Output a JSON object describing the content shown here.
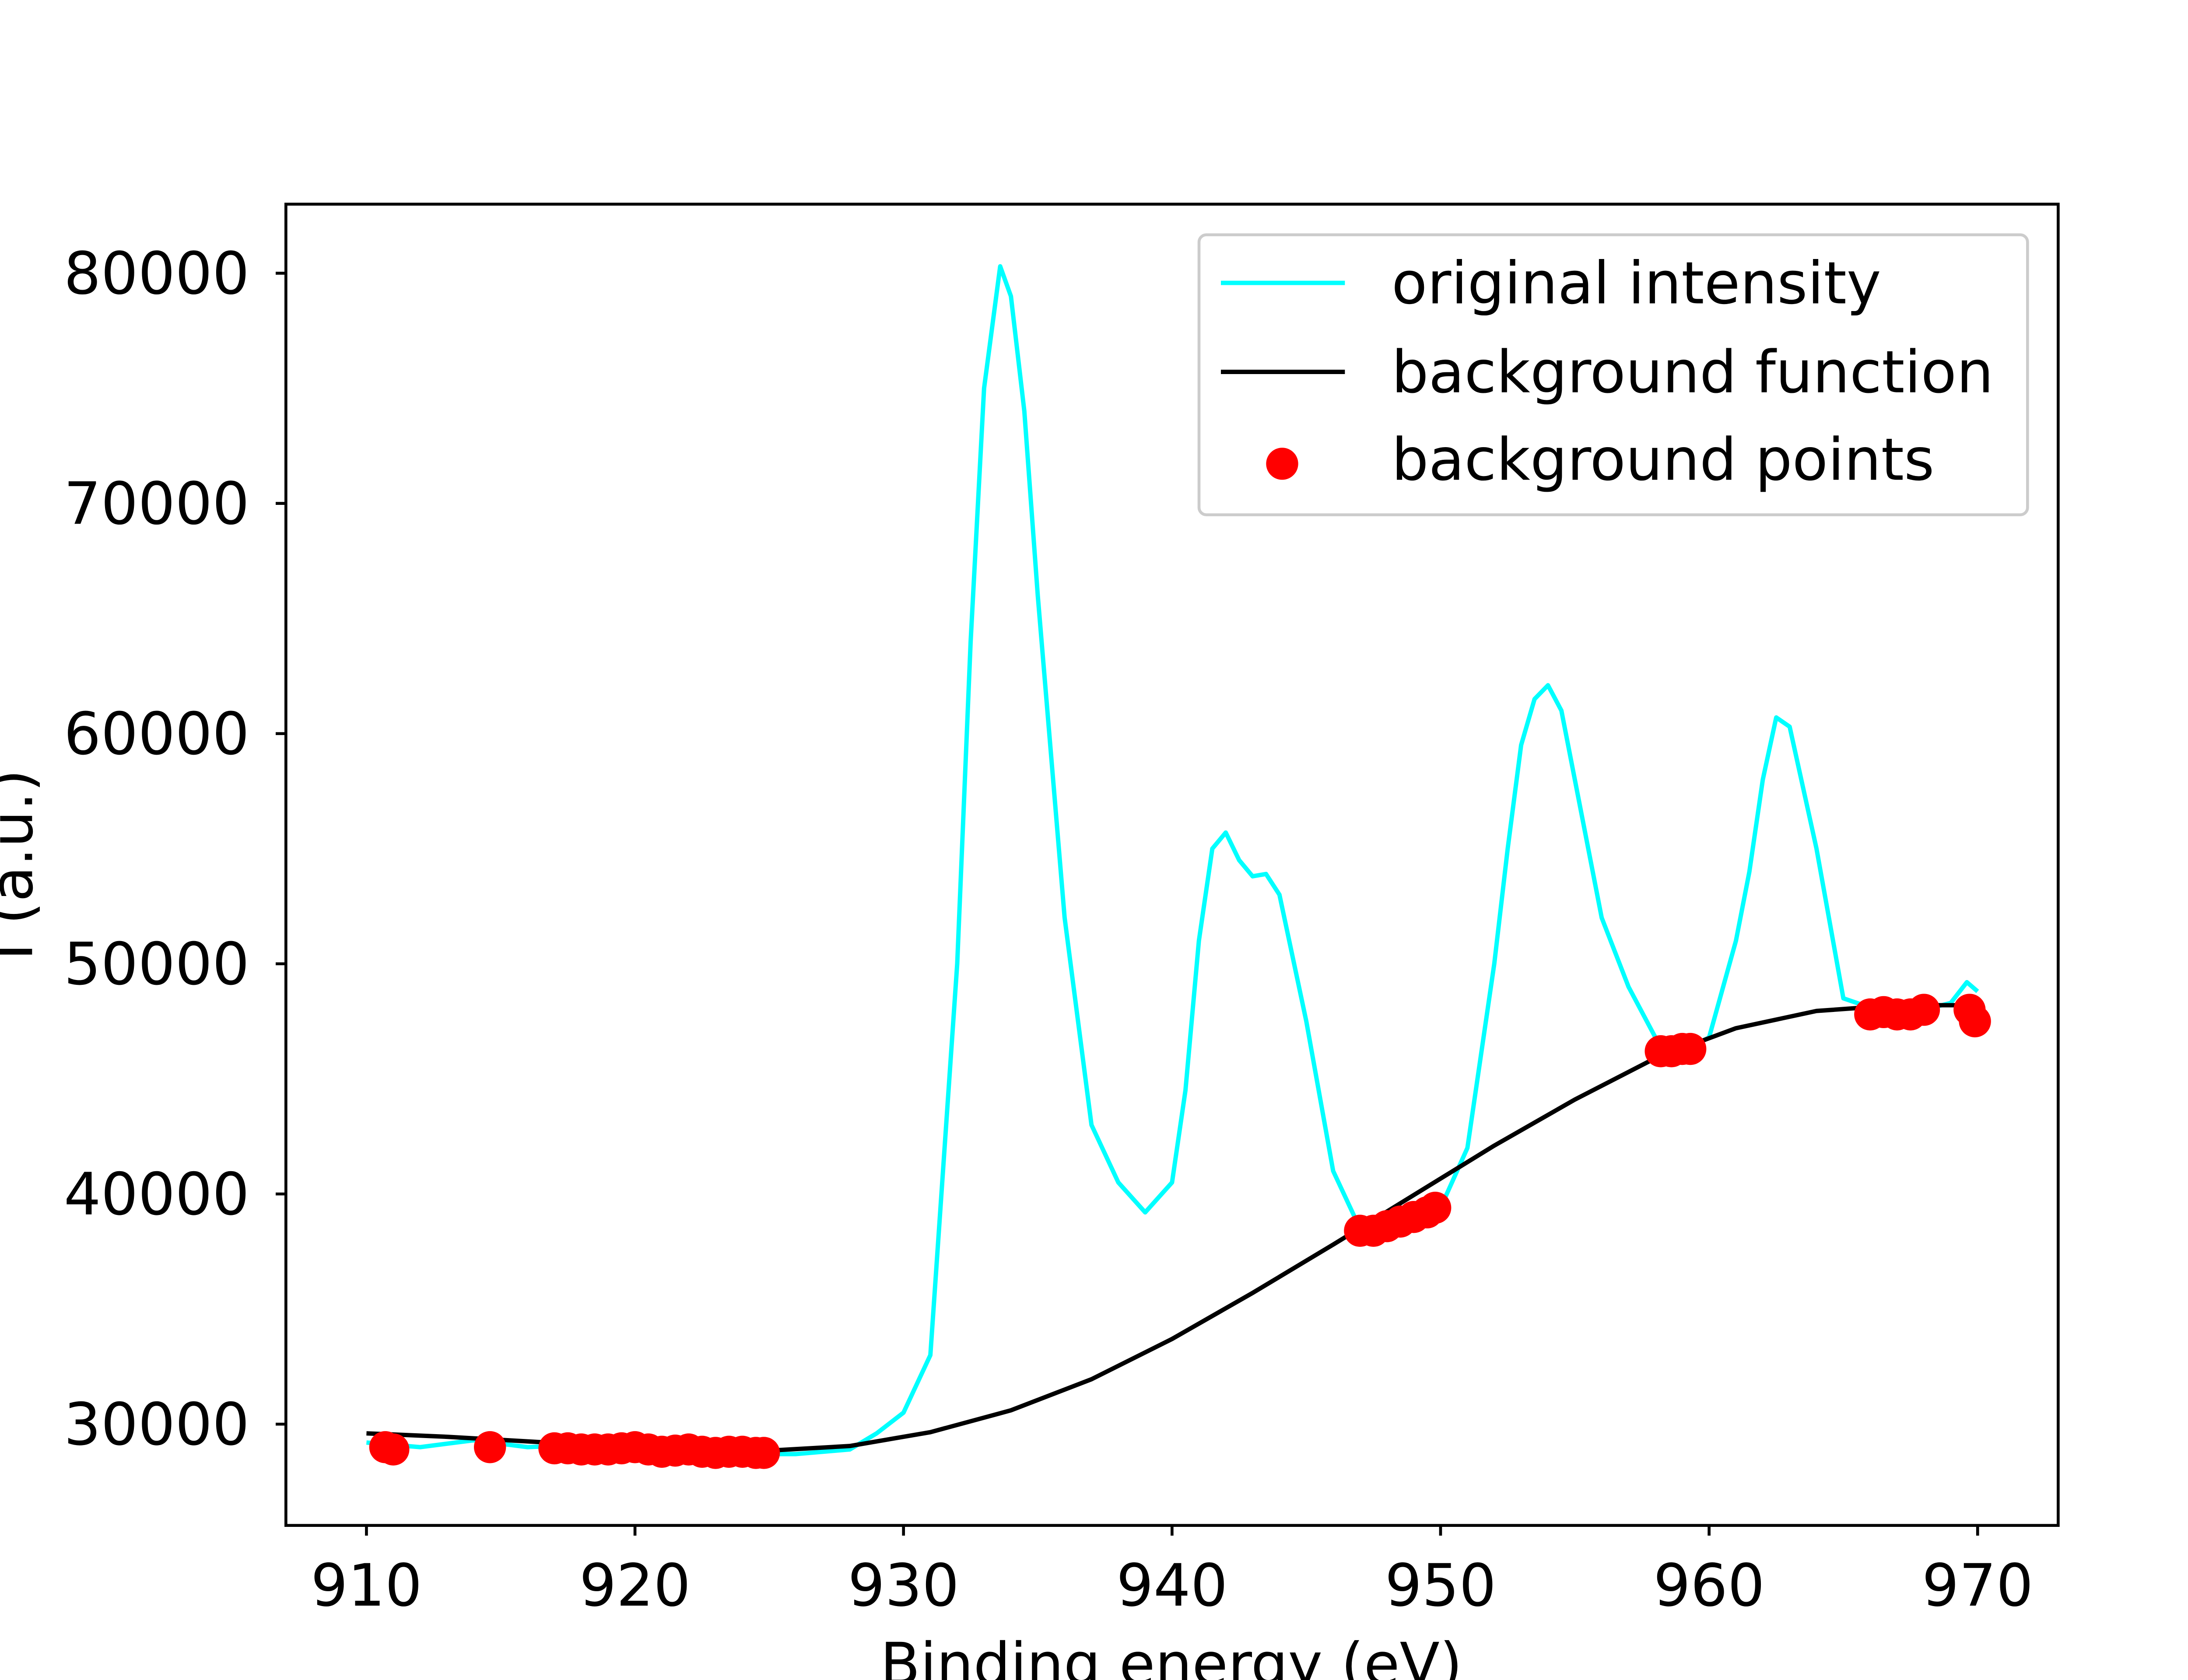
{
  "chart_data": {
    "type": "line",
    "title": "",
    "xlabel": "Binding energy (eV)",
    "ylabel": "I (a.u.)",
    "xlim": [
      907,
      973
    ],
    "ylim": [
      25600,
      83000
    ],
    "xticks": [
      910,
      920,
      930,
      940,
      950,
      960,
      970
    ],
    "yticks": [
      30000,
      40000,
      50000,
      60000,
      70000,
      80000
    ],
    "legend": {
      "position": "top-right",
      "entries": [
        {
          "label": "original intensity",
          "kind": "line",
          "color": "#00ffff"
        },
        {
          "label": "background function",
          "kind": "line",
          "color": "#000000"
        },
        {
          "label": "background points",
          "kind": "marker",
          "color": "#ff0000"
        }
      ]
    },
    "series": [
      {
        "name": "original intensity",
        "color": "#00ffff",
        "x": [
          910,
          912,
          914,
          916,
          918,
          920,
          922,
          924,
          926,
          928,
          929,
          930,
          931,
          932,
          932.5,
          933,
          933.6,
          934,
          934.5,
          935,
          936,
          937,
          938,
          939,
          940,
          940.5,
          941,
          941.5,
          942,
          942.5,
          943,
          943.5,
          944,
          945,
          946,
          947,
          948,
          949,
          950,
          951,
          952,
          952.5,
          953,
          953.5,
          954,
          954.5,
          955,
          956,
          957,
          958,
          959,
          960,
          961,
          961.5,
          962,
          962.5,
          963,
          964,
          965,
          966,
          967,
          968,
          969,
          969.6,
          970
        ],
        "y": [
          29200,
          29000,
          29300,
          29000,
          29100,
          28900,
          28800,
          28700,
          28700,
          28900,
          29600,
          30500,
          33000,
          50000,
          64000,
          75000,
          80300,
          79000,
          74000,
          66000,
          52000,
          43000,
          40500,
          39200,
          40500,
          44500,
          51000,
          55000,
          55700,
          54500,
          53800,
          53900,
          53000,
          47500,
          41000,
          38500,
          38300,
          38700,
          39400,
          42000,
          50000,
          55000,
          59500,
          61500,
          62100,
          61000,
          58000,
          52000,
          49000,
          46800,
          46200,
          46800,
          51000,
          54000,
          58000,
          60700,
          60300,
          55000,
          48500,
          48100,
          48000,
          48000,
          48300,
          49200,
          48800
        ]
      },
      {
        "name": "background function",
        "color": "#000000",
        "x": [
          910,
          913,
          916,
          919,
          922,
          925,
          928,
          931,
          934,
          937,
          940,
          943,
          946,
          949,
          952,
          955,
          958,
          961,
          964,
          967,
          970
        ],
        "y": [
          29600,
          29450,
          29250,
          29050,
          28900,
          28850,
          29050,
          29650,
          30600,
          31950,
          33700,
          35700,
          37800,
          39950,
          42100,
          44100,
          45900,
          47200,
          47950,
          48200,
          48200
        ]
      },
      {
        "name": "background points",
        "color": "#ff0000",
        "marker": "circle",
        "x": [
          910.7,
          911.0,
          914.6,
          917.0,
          917.5,
          918.0,
          918.5,
          919.0,
          919.5,
          920.0,
          920.5,
          921.0,
          921.5,
          922.0,
          922.5,
          923.0,
          923.5,
          924.0,
          924.5,
          924.8,
          947.0,
          947.5,
          948.0,
          948.5,
          949.0,
          949.5,
          949.8,
          958.2,
          958.6,
          959.0,
          959.3,
          966.0,
          966.5,
          967.0,
          967.5,
          968.0,
          969.7,
          969.9
        ],
        "y": [
          29000,
          28900,
          29000,
          28950,
          28950,
          28900,
          28900,
          28900,
          28950,
          29000,
          28900,
          28800,
          28850,
          28900,
          28800,
          28750,
          28800,
          28800,
          28750,
          28750,
          38400,
          38400,
          38600,
          38800,
          39000,
          39200,
          39400,
          46200,
          46200,
          46300,
          46300,
          47800,
          47900,
          47800,
          47800,
          48000,
          48000,
          47500
        ]
      }
    ]
  }
}
